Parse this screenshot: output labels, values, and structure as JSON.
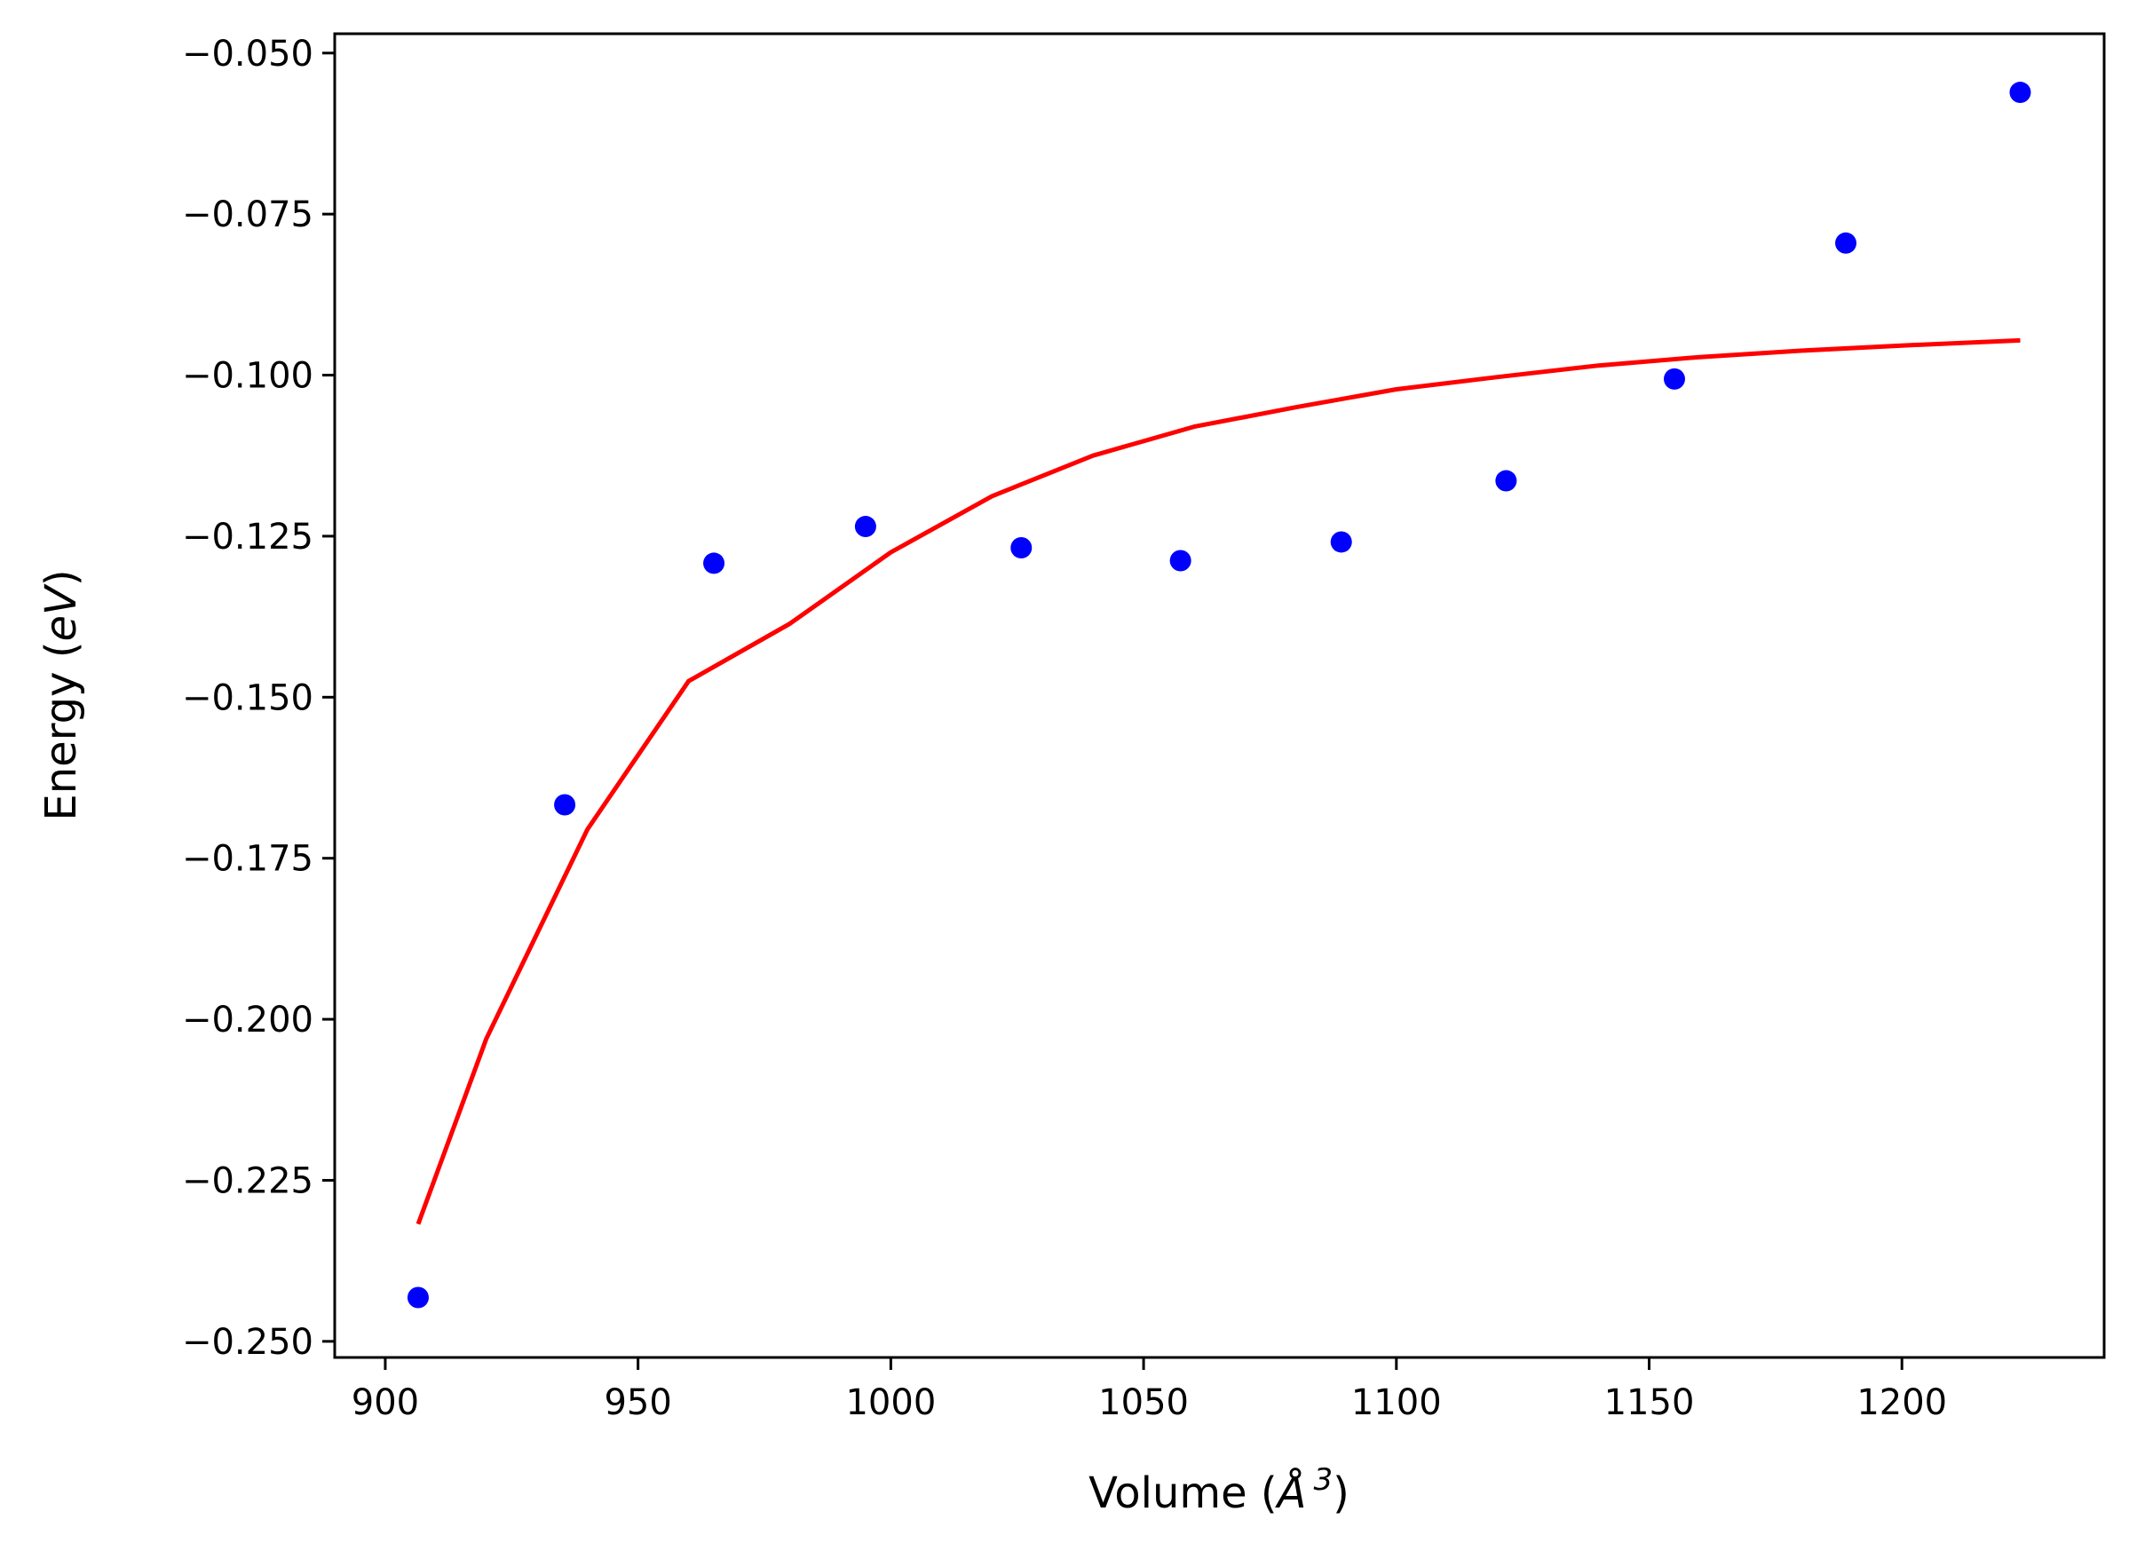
{
  "chart_data": {
    "type": "scatter",
    "xlabel_prefix": "Volume (",
    "xlabel_symbol": "Å",
    "xlabel_exponent": "3",
    "xlabel_suffix": ")",
    "ylabel_prefix": "Energy (",
    "ylabel_unit": "eV",
    "ylabel_suffix": ")",
    "xlim": [
      890,
      1240
    ],
    "ylim": [
      -0.2525,
      -0.047
    ],
    "xticks": [
      900,
      950,
      1000,
      1050,
      1100,
      1150,
      1200
    ],
    "xtick_labels": [
      "900",
      "950",
      "1000",
      "1050",
      "1100",
      "1150",
      "1200"
    ],
    "yticks": [
      -0.05,
      -0.075,
      -0.1,
      -0.125,
      -0.15,
      -0.175,
      -0.2,
      -0.225,
      -0.25
    ],
    "ytick_labels": [
      "−0.050",
      "−0.075",
      "−0.100",
      "−0.125",
      "−0.150",
      "−0.175",
      "−0.200",
      "−0.225",
      "−0.250"
    ],
    "grid": false,
    "series": [
      {
        "kind": "points",
        "color": "#0000ff",
        "x": [
          906.5,
          935.5,
          965.0,
          995.0,
          1025.8,
          1057.3,
          1089.1,
          1121.7,
          1155.0,
          1188.9,
          1223.4
        ],
        "y": [
          -0.2432,
          -0.1667,
          -0.1292,
          -0.1235,
          -0.1268,
          -0.1288,
          -0.1259,
          -0.1164,
          -0.1006,
          -0.0795,
          -0.0561
        ]
      },
      {
        "kind": "line",
        "color": "#ff0000",
        "x": [
          906.5,
          920,
          940,
          960,
          980,
          1000,
          1020,
          1040,
          1060,
          1080,
          1100,
          1120,
          1140,
          1160,
          1180,
          1200,
          1223.4
        ],
        "y": [
          -0.2318,
          -0.203,
          -0.1705,
          -0.1475,
          -0.1386,
          -0.1275,
          -0.1188,
          -0.1125,
          -0.108,
          -0.105,
          -0.1022,
          -0.1003,
          -0.0985,
          -0.0972,
          -0.0962,
          -0.0954,
          -0.0946
        ]
      }
    ]
  }
}
